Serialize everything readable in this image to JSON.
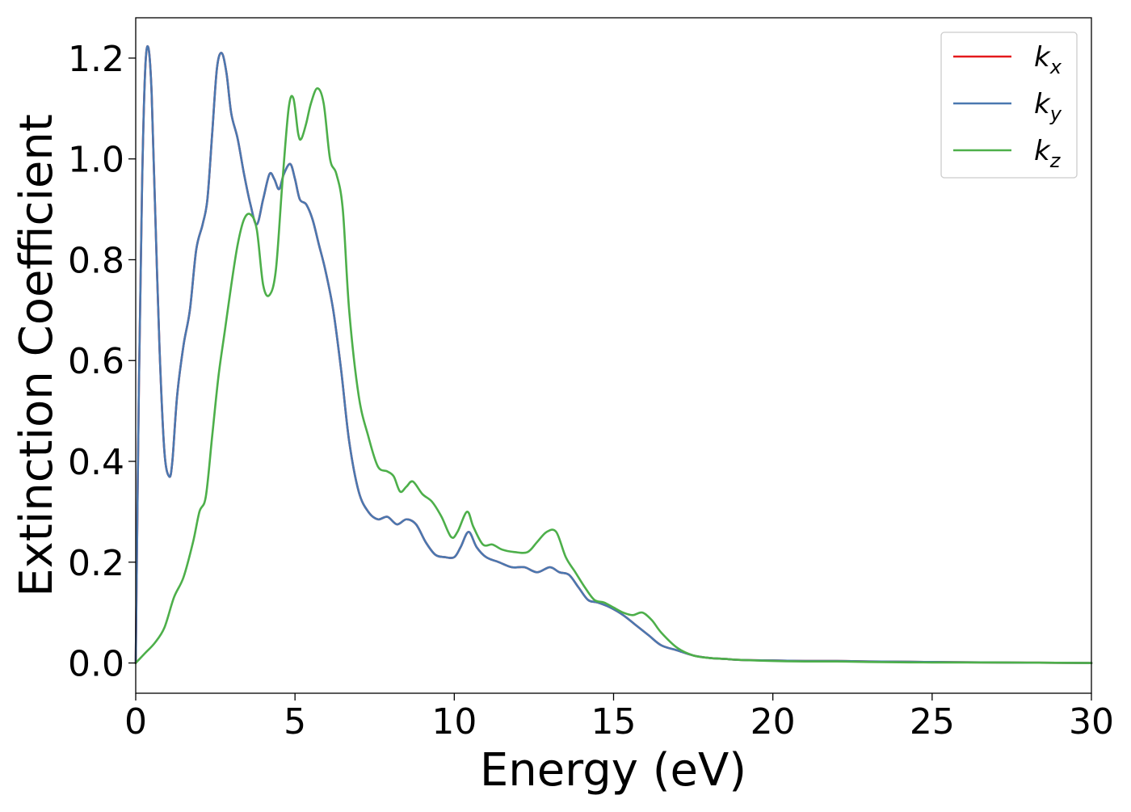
{
  "chart_data": {
    "type": "line",
    "title": "",
    "xlabel": "Energy (eV)",
    "ylabel": "Extinction Coefficient",
    "xlim": [
      0,
      30
    ],
    "ylim": [
      -0.06,
      1.28
    ],
    "xticks": [
      "0",
      "5",
      "10",
      "15",
      "20",
      "25",
      "30"
    ],
    "yticks": [
      "0.0",
      "0.2",
      "0.4",
      "0.6",
      "0.8",
      "1.0",
      "1.2"
    ],
    "grid": false,
    "legend_position": "top-right",
    "series": [
      {
        "name": "kx",
        "legend_main": "k",
        "legend_sub": "x",
        "color": "#e41a1c",
        "x": [
          0,
          0.1,
          0.2,
          0.3,
          0.4,
          0.5,
          0.6,
          0.75,
          0.9,
          1.05,
          1.15,
          1.3,
          1.5,
          1.7,
          1.9,
          2.1,
          2.25,
          2.4,
          2.55,
          2.7,
          2.85,
          3.0,
          3.2,
          3.4,
          3.6,
          3.8,
          4.0,
          4.2,
          4.35,
          4.5,
          4.65,
          4.85,
          5.0,
          5.15,
          5.35,
          5.55,
          5.75,
          5.95,
          6.2,
          6.45,
          6.7,
          7.0,
          7.3,
          7.6,
          7.9,
          8.2,
          8.5,
          8.8,
          9.1,
          9.4,
          9.7,
          10.0,
          10.2,
          10.45,
          10.7,
          11.0,
          11.4,
          11.8,
          12.2,
          12.6,
          13.0,
          13.3,
          13.6,
          13.9,
          14.2,
          14.5,
          14.9,
          15.3,
          15.7,
          16.1,
          16.5,
          17.0,
          17.5,
          18.0,
          18.5,
          19.0,
          20.0,
          21.0,
          22.0,
          23.0,
          25.0,
          27.0,
          30.0
        ],
        "y": [
          0.0,
          0.55,
          0.95,
          1.18,
          1.22,
          1.13,
          0.92,
          0.62,
          0.42,
          0.37,
          0.4,
          0.53,
          0.63,
          0.7,
          0.82,
          0.87,
          0.92,
          1.05,
          1.18,
          1.21,
          1.17,
          1.09,
          1.04,
          0.97,
          0.91,
          0.87,
          0.92,
          0.97,
          0.96,
          0.94,
          0.97,
          0.99,
          0.96,
          0.92,
          0.91,
          0.88,
          0.83,
          0.78,
          0.7,
          0.58,
          0.44,
          0.34,
          0.3,
          0.285,
          0.29,
          0.275,
          0.285,
          0.275,
          0.24,
          0.215,
          0.21,
          0.21,
          0.23,
          0.26,
          0.23,
          0.21,
          0.2,
          0.19,
          0.19,
          0.18,
          0.19,
          0.18,
          0.175,
          0.15,
          0.125,
          0.12,
          0.11,
          0.095,
          0.075,
          0.055,
          0.035,
          0.025,
          0.015,
          0.01,
          0.008,
          0.006,
          0.005,
          0.004,
          0.004,
          0.003,
          0.002,
          0.001,
          0.0
        ]
      },
      {
        "name": "ky",
        "legend_main": "k",
        "legend_sub": "y",
        "color": "#4a78b0",
        "x": [
          0,
          0.1,
          0.2,
          0.3,
          0.4,
          0.5,
          0.6,
          0.75,
          0.9,
          1.05,
          1.15,
          1.3,
          1.5,
          1.7,
          1.9,
          2.1,
          2.25,
          2.4,
          2.55,
          2.7,
          2.85,
          3.0,
          3.2,
          3.4,
          3.6,
          3.8,
          4.0,
          4.2,
          4.35,
          4.5,
          4.65,
          4.85,
          5.0,
          5.15,
          5.35,
          5.55,
          5.75,
          5.95,
          6.2,
          6.45,
          6.7,
          7.0,
          7.3,
          7.6,
          7.9,
          8.2,
          8.5,
          8.8,
          9.1,
          9.4,
          9.7,
          10.0,
          10.2,
          10.45,
          10.7,
          11.0,
          11.4,
          11.8,
          12.2,
          12.6,
          13.0,
          13.3,
          13.6,
          13.9,
          14.2,
          14.5,
          14.9,
          15.3,
          15.7,
          16.1,
          16.5,
          17.0,
          17.5,
          18.0,
          18.5,
          19.0,
          20.0,
          21.0,
          22.0,
          23.0,
          25.0,
          27.0,
          30.0
        ],
        "y": [
          0.0,
          0.55,
          0.95,
          1.18,
          1.22,
          1.13,
          0.92,
          0.62,
          0.42,
          0.37,
          0.4,
          0.53,
          0.63,
          0.7,
          0.82,
          0.87,
          0.92,
          1.05,
          1.18,
          1.21,
          1.17,
          1.09,
          1.04,
          0.97,
          0.91,
          0.87,
          0.92,
          0.97,
          0.96,
          0.94,
          0.97,
          0.99,
          0.96,
          0.92,
          0.91,
          0.88,
          0.83,
          0.78,
          0.7,
          0.58,
          0.44,
          0.34,
          0.3,
          0.285,
          0.29,
          0.275,
          0.285,
          0.275,
          0.24,
          0.215,
          0.21,
          0.21,
          0.23,
          0.26,
          0.23,
          0.21,
          0.2,
          0.19,
          0.19,
          0.18,
          0.19,
          0.18,
          0.175,
          0.15,
          0.125,
          0.12,
          0.11,
          0.095,
          0.075,
          0.055,
          0.035,
          0.025,
          0.015,
          0.01,
          0.008,
          0.006,
          0.005,
          0.004,
          0.004,
          0.003,
          0.002,
          0.001,
          0.0
        ]
      },
      {
        "name": "kz",
        "legend_main": "k",
        "legend_sub": "z",
        "color": "#4daf4a",
        "x": [
          0,
          0.3,
          0.6,
          0.9,
          1.2,
          1.5,
          1.8,
          2.0,
          2.2,
          2.4,
          2.6,
          2.8,
          3.0,
          3.2,
          3.4,
          3.6,
          3.8,
          4.0,
          4.2,
          4.4,
          4.6,
          4.8,
          4.95,
          5.1,
          5.2,
          5.35,
          5.5,
          5.7,
          5.9,
          6.1,
          6.3,
          6.5,
          6.7,
          7.0,
          7.3,
          7.6,
          7.9,
          8.1,
          8.3,
          8.5,
          8.7,
          9.0,
          9.3,
          9.6,
          9.9,
          10.1,
          10.4,
          10.6,
          10.9,
          11.2,
          11.5,
          11.9,
          12.3,
          12.6,
          12.9,
          13.2,
          13.5,
          13.8,
          14.1,
          14.4,
          14.7,
          15.0,
          15.3,
          15.6,
          15.9,
          16.2,
          16.5,
          17.0,
          17.5,
          18.0,
          18.5,
          19.0,
          20.0,
          21.0,
          22.0,
          23.0,
          25.0,
          27.0,
          30.0
        ],
        "y": [
          0.0,
          0.02,
          0.04,
          0.07,
          0.13,
          0.17,
          0.24,
          0.3,
          0.33,
          0.45,
          0.57,
          0.66,
          0.75,
          0.83,
          0.88,
          0.89,
          0.86,
          0.75,
          0.73,
          0.78,
          0.95,
          1.1,
          1.12,
          1.05,
          1.04,
          1.07,
          1.11,
          1.14,
          1.11,
          1.0,
          0.97,
          0.9,
          0.7,
          0.53,
          0.45,
          0.39,
          0.38,
          0.37,
          0.34,
          0.35,
          0.36,
          0.335,
          0.32,
          0.29,
          0.25,
          0.26,
          0.3,
          0.27,
          0.235,
          0.235,
          0.225,
          0.22,
          0.22,
          0.24,
          0.26,
          0.26,
          0.21,
          0.18,
          0.15,
          0.125,
          0.12,
          0.11,
          0.1,
          0.095,
          0.1,
          0.085,
          0.06,
          0.03,
          0.015,
          0.01,
          0.008,
          0.006,
          0.004,
          0.003,
          0.003,
          0.002,
          0.001,
          0.001,
          0.0
        ]
      }
    ]
  }
}
